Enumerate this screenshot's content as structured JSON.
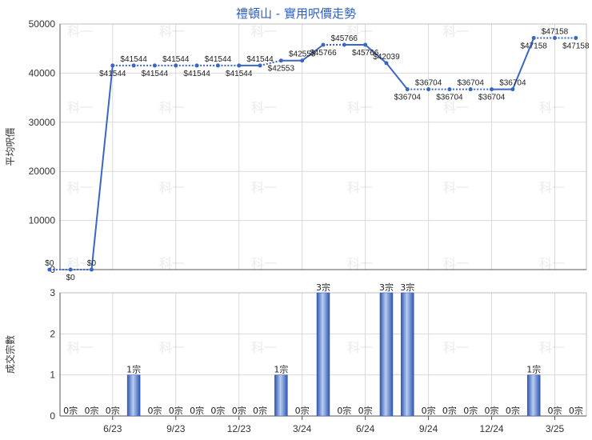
{
  "title": "禮頓山 - 實用呎價走勢",
  "watermark_text": "科一",
  "colors": {
    "line": "#3a66c4",
    "bar_dark": "#2f56b0",
    "bar_light": "#b9cdf2",
    "grid": "#d9d9d9",
    "title": "#2e5fb8"
  },
  "chart_data": [
    {
      "type": "line",
      "ylabel": "平均呎價",
      "ylim": [
        0,
        50000
      ],
      "yticks": [
        "0",
        "10000",
        "20000",
        "30000",
        "40000",
        "50000"
      ],
      "grid": true,
      "y": [
        0,
        0,
        0,
        41544,
        41544,
        41544,
        41544,
        41544,
        41544,
        41544,
        41544,
        42553,
        42553,
        45766,
        45766,
        45766,
        42039,
        36704,
        36704,
        36704,
        36704,
        36704,
        36704,
        47158,
        47158,
        47158
      ],
      "point_labels": [
        "$0",
        "$0",
        "$0",
        "$41544",
        "$41544",
        "$41544",
        "$41544",
        "$41544",
        "$41544",
        "$41544",
        "$41544",
        "$42553",
        "$42553",
        "$45766",
        "$45766",
        "$45766",
        "$42039",
        "$36704",
        "$36704",
        "$36704",
        "$36704",
        "$36704",
        "$36704",
        "$47158",
        "$47158",
        "$47158"
      ],
      "segment_style": [
        "dotted",
        "dotted",
        "solid",
        "dotted",
        "dotted",
        "dotted",
        "dotted",
        "dotted",
        "dotted",
        "solid",
        "dotted",
        "solid",
        "solid",
        "dotted",
        "solid",
        "solid",
        "solid",
        "dotted",
        "dotted",
        "dotted",
        "dotted",
        "solid",
        "solid",
        "dotted",
        "dotted"
      ]
    },
    {
      "type": "bar",
      "ylabel": "成交宗數",
      "ylim": [
        0,
        3
      ],
      "yticks": [
        "0",
        "1",
        "2",
        "3"
      ],
      "grid": true,
      "values": [
        0,
        0,
        0,
        1,
        0,
        0,
        0,
        0,
        0,
        0,
        1,
        0,
        3,
        0,
        0,
        3,
        3,
        0,
        0,
        0,
        0,
        0,
        1,
        0,
        0
      ],
      "value_labels": [
        "0宗",
        "0宗",
        "0宗",
        "1宗",
        "0宗",
        "0宗",
        "0宗",
        "0宗",
        "0宗",
        "0宗",
        "1宗",
        "0宗",
        "3宗",
        "0宗",
        "0宗",
        "3宗",
        "3宗",
        "0宗",
        "0宗",
        "0宗",
        "0宗",
        "0宗",
        "1宗",
        "0宗",
        "0宗"
      ],
      "xticks": [
        "6/23",
        "9/23",
        "12/23",
        "3/24",
        "6/24",
        "9/24",
        "12/24",
        "3/25"
      ]
    }
  ]
}
